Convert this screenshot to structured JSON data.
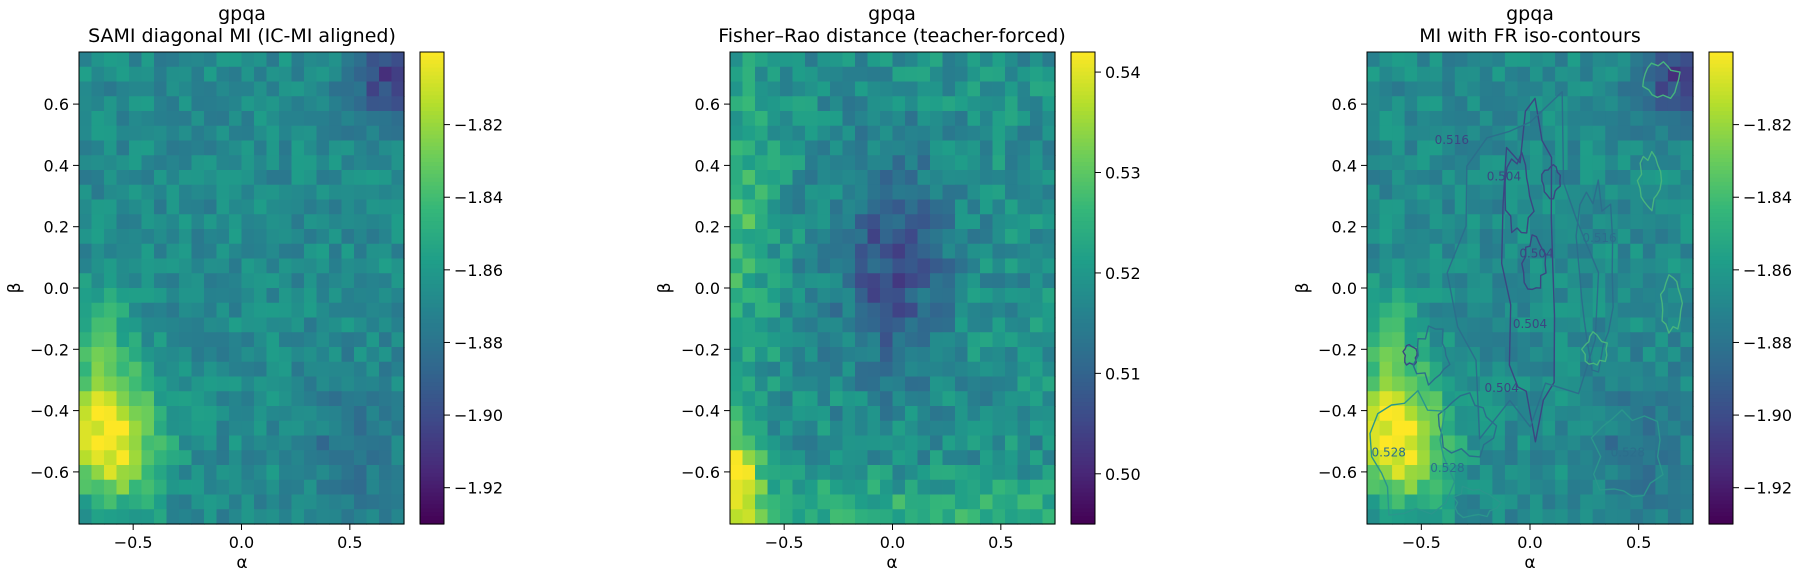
{
  "chart_data": [
    {
      "type": "heatmap",
      "title": "gpqa",
      "subtitle": "SAMI diagonal MI (IC-MI aligned)",
      "xlabel": "α",
      "ylabel": "β",
      "xlim": [
        -0.75,
        0.75
      ],
      "ylim": [
        -0.77,
        0.77
      ],
      "xticks": [
        "−0.5",
        "0.0",
        "0.5"
      ],
      "xtick_values": [
        -0.5,
        0.0,
        0.5
      ],
      "yticks": [
        "0.6",
        "0.4",
        "0.2",
        "0.0",
        "−0.2",
        "−0.4",
        "−0.6"
      ],
      "ytick_values": [
        0.6,
        0.4,
        0.2,
        0.0,
        -0.2,
        -0.4,
        -0.6
      ],
      "colormap": "viridis",
      "colorbar_range": [
        -1.93,
        -1.8
      ],
      "colorbar_ticks": [
        "−1.82",
        "−1.84",
        "−1.86",
        "−1.88",
        "−1.90",
        "−1.92"
      ],
      "colorbar_tick_values": [
        -1.82,
        -1.84,
        -1.86,
        -1.88,
        -1.9,
        -1.92
      ],
      "grid_cells": [
        26,
        32
      ],
      "high_region": "lower-left (α≈−0.6, β≈−0.5)",
      "low_region": "upper-right (α≈0.7, β≈0.7)"
    },
    {
      "type": "heatmap",
      "title": "gpqa",
      "subtitle": "Fisher–Rao distance (teacher-forced)",
      "xlabel": "α",
      "ylabel": "β",
      "xlim": [
        -0.75,
        0.75
      ],
      "ylim": [
        -0.77,
        0.77
      ],
      "xticks": [
        "−0.5",
        "0.0",
        "0.5"
      ],
      "xtick_values": [
        -0.5,
        0.0,
        0.5
      ],
      "yticks": [
        "0.6",
        "0.4",
        "0.2",
        "0.0",
        "−0.2",
        "−0.4",
        "−0.6"
      ],
      "ytick_values": [
        0.6,
        0.4,
        0.2,
        0.0,
        -0.2,
        -0.4,
        -0.6
      ],
      "colormap": "viridis",
      "colorbar_range": [
        0.495,
        0.542
      ],
      "colorbar_ticks": [
        "0.54",
        "0.53",
        "0.52",
        "0.51",
        "0.50"
      ],
      "colorbar_tick_values": [
        0.54,
        0.53,
        0.52,
        0.51,
        0.5
      ],
      "grid_cells": [
        26,
        32
      ],
      "high_region": "lower-left edge (α≈−0.7, β≈−0.6)",
      "low_region": "center (α≈0.0, β≈0.1)"
    },
    {
      "type": "heatmap",
      "title": "gpqa",
      "subtitle": "MI with FR iso-contours",
      "xlabel": "α",
      "ylabel": "β",
      "xlim": [
        -0.75,
        0.75
      ],
      "ylim": [
        -0.77,
        0.77
      ],
      "xticks": [
        "−0.5",
        "0.0",
        "0.5"
      ],
      "xtick_values": [
        -0.5,
        0.0,
        0.5
      ],
      "yticks": [
        "0.6",
        "0.4",
        "0.2",
        "0.0",
        "−0.2",
        "−0.4",
        "−0.6"
      ],
      "ytick_values": [
        0.6,
        0.4,
        0.2,
        0.0,
        -0.2,
        -0.4,
        -0.6
      ],
      "colormap": "viridis",
      "colorbar_range": [
        -1.93,
        -1.8
      ],
      "colorbar_ticks": [
        "−1.82",
        "−1.84",
        "−1.86",
        "−1.88",
        "−1.90",
        "−1.92"
      ],
      "colorbar_tick_values": [
        -1.82,
        -1.84,
        -1.86,
        -1.88,
        -1.9,
        -1.92
      ],
      "grid_cells": [
        26,
        32
      ],
      "contour_levels": [
        0.504,
        0.516,
        0.528
      ],
      "contour_labels": [
        {
          "text": "0.516",
          "alpha": -0.36,
          "beta": 0.47
        },
        {
          "text": "0.504",
          "alpha": -0.12,
          "beta": 0.35
        },
        {
          "text": "0.504",
          "alpha": 0.03,
          "beta": 0.1
        },
        {
          "text": "0.504",
          "alpha": 0.0,
          "beta": -0.13
        },
        {
          "text": "0.504",
          "alpha": -0.13,
          "beta": -0.34
        },
        {
          "text": "0.516",
          "alpha": 0.32,
          "beta": 0.15
        },
        {
          "text": "0.528",
          "alpha": -0.38,
          "beta": -0.6
        },
        {
          "text": "0.528",
          "alpha": 0.45,
          "beta": -0.55
        },
        {
          "text": "0.528",
          "alpha": -0.65,
          "beta": -0.55
        }
      ]
    }
  ]
}
